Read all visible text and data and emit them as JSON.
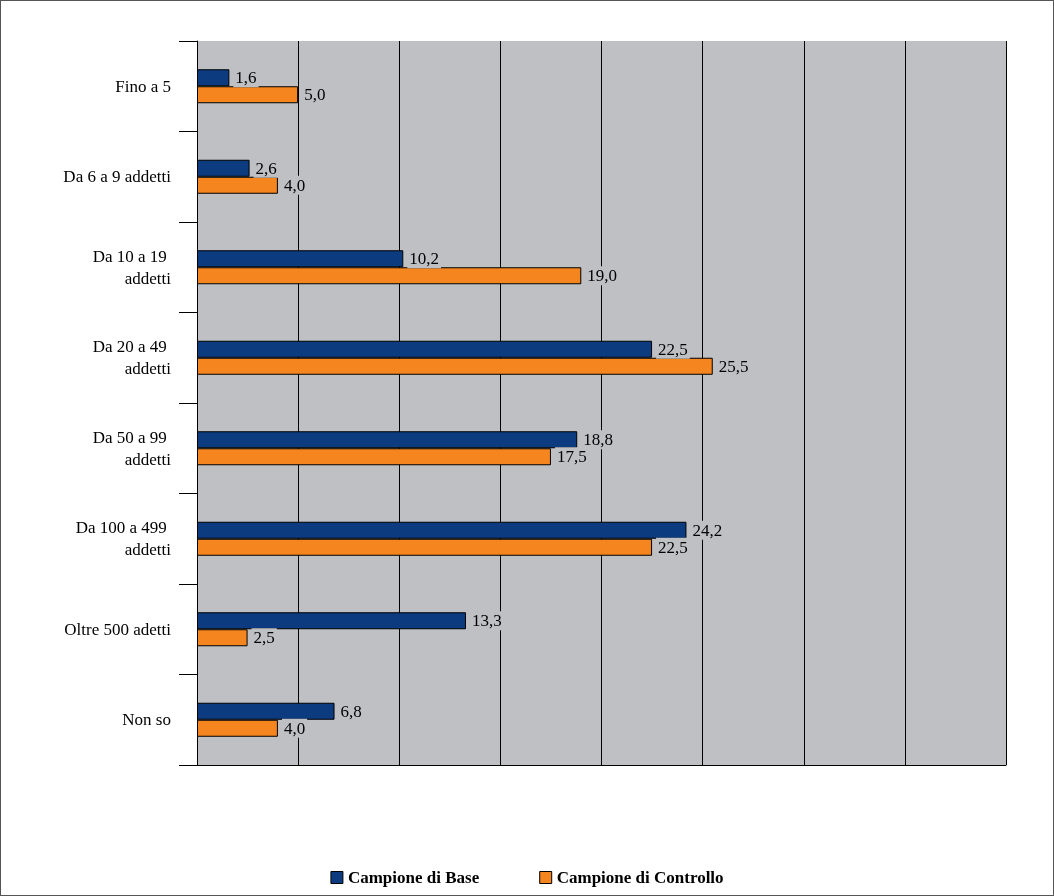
{
  "chart_data": {
    "type": "bar",
    "orientation": "horizontal",
    "categories": [
      "Fino a 5",
      "Da 6 a 9 addetti",
      "Da 10 a 19 addetti",
      "Da 20 a 49 addetti",
      "Da 50 a 99 addetti",
      "Da 100 a 499 addetti",
      "Oltre 500 adetti",
      "Non so"
    ],
    "series": [
      {
        "name": "Campione di Base",
        "color": "#0d3b80",
        "values": [
          1.6,
          2.6,
          10.2,
          22.5,
          18.8,
          24.2,
          13.3,
          6.8
        ],
        "value_labels": [
          "1,6",
          "2,6",
          "10,2",
          "22,5",
          "18,8",
          "24,2",
          "13,3",
          "6,8"
        ]
      },
      {
        "name": "Campione di Controllo",
        "color": "#f5861f",
        "values": [
          5.0,
          4.0,
          19.0,
          25.5,
          17.5,
          22.5,
          2.5,
          4.0
        ],
        "value_labels": [
          "5,0",
          "4,0",
          "19,0",
          "25,5",
          "17,5",
          "22,5",
          "2,5",
          "4,0"
        ]
      }
    ],
    "xlim": [
      0,
      40
    ],
    "xticks": [
      {
        "value": 0,
        "label": null
      },
      {
        "value": 5,
        "label": null
      },
      {
        "value": 10,
        "label": null
      },
      {
        "value": 15,
        "label": null
      },
      {
        "value": 20,
        "label": null
      },
      {
        "value": 25,
        "label": null
      },
      {
        "value": 30,
        "label": null
      },
      {
        "value": 35,
        "label": null
      },
      {
        "value": 40,
        "label": null
      }
    ],
    "tick_labels": "y",
    "grid": "x",
    "legend": "bottom"
  }
}
